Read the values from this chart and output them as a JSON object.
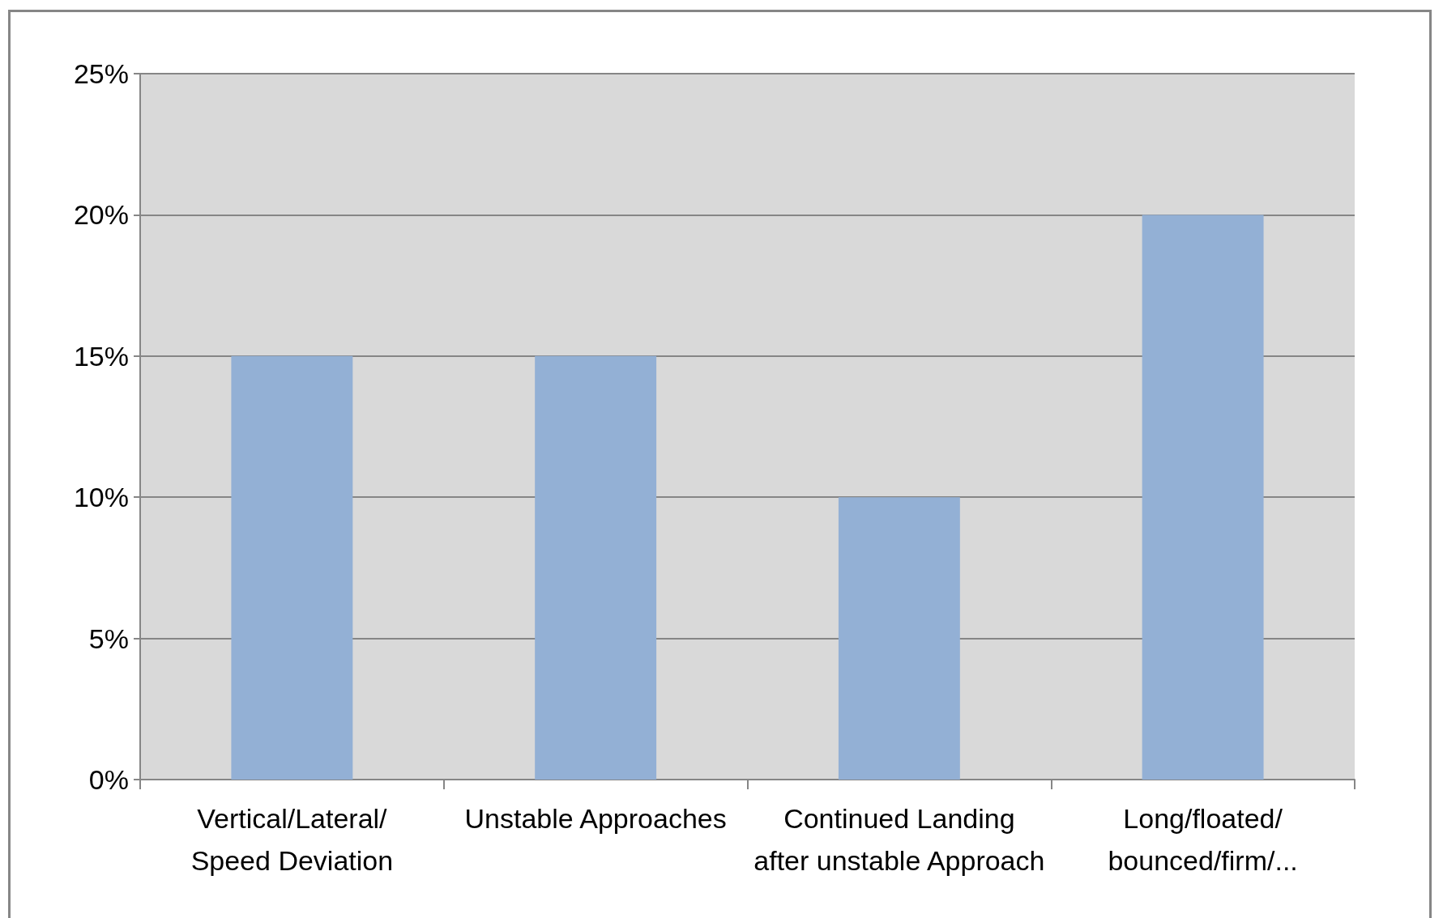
{
  "chart_data": {
    "type": "bar",
    "categories": [
      "Vertical/Lateral/\nSpeed Deviation",
      "Unstable Approaches",
      "Continued Landing\nafter unstable Approach",
      "Long/floated/\nbounced/firm/..."
    ],
    "values": [
      15,
      15,
      10,
      20
    ],
    "color": "#93b0d5",
    "ylim": [
      0,
      25
    ],
    "yticks": [
      {
        "value": 0,
        "label": "0%"
      },
      {
        "value": 5,
        "label": "5%"
      },
      {
        "value": 10,
        "label": "10%"
      },
      {
        "value": 15,
        "label": "15%"
      },
      {
        "value": 20,
        "label": "20%"
      },
      {
        "value": 25,
        "label": "25%"
      }
    ],
    "grid": "y"
  }
}
